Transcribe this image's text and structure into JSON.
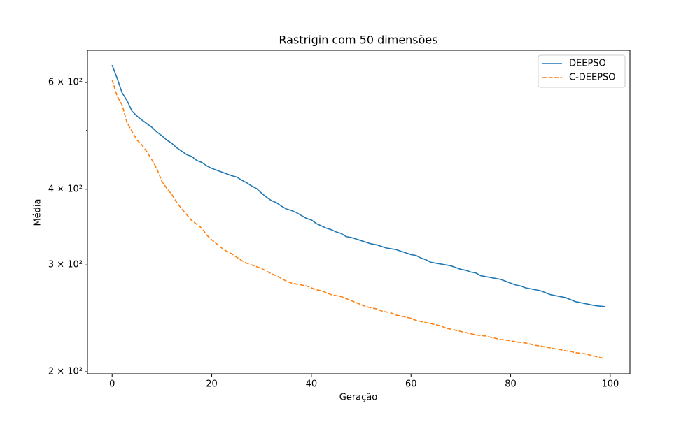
{
  "chart_data": {
    "type": "line",
    "title": "Rastrigin com 50 dimensões",
    "x_label": "Geração",
    "y_label": "Média",
    "y_scale": "log",
    "legend_position": "upper right",
    "xlim": [
      -4.95,
      103.95
    ],
    "xticks": [
      0,
      20,
      40,
      60,
      80,
      100
    ],
    "ylim": [
      198.4,
      678
    ],
    "yticks": [
      {
        "value": 200,
        "label": "2 × 10²"
      },
      {
        "value": 300,
        "label": "3 × 10²"
      },
      {
        "value": 400,
        "label": "4 × 10²"
      },
      {
        "value": 600,
        "label": "6 × 10²"
      }
    ],
    "yminorticks": [
      500
    ],
    "x": [
      0,
      1,
      2,
      3,
      4,
      5,
      6,
      7,
      8,
      9,
      10,
      11,
      12,
      13,
      14,
      15,
      16,
      17,
      18,
      19,
      20,
      21,
      22,
      23,
      24,
      25,
      26,
      27,
      28,
      29,
      30,
      31,
      32,
      33,
      34,
      35,
      36,
      37,
      38,
      39,
      40,
      41,
      42,
      43,
      44,
      45,
      46,
      47,
      48,
      49,
      50,
      51,
      52,
      53,
      54,
      55,
      56,
      57,
      58,
      59,
      60,
      61,
      62,
      63,
      64,
      65,
      66,
      67,
      68,
      69,
      70,
      71,
      72,
      73,
      74,
      75,
      76,
      77,
      78,
      79,
      80,
      81,
      82,
      83,
      84,
      85,
      86,
      87,
      88,
      89,
      90,
      91,
      92,
      93,
      94,
      95,
      96,
      97,
      98,
      99
    ],
    "series": [
      {
        "name": "DEEPSO",
        "color": "#1f77b4",
        "linestyle": "solid",
        "values": [
          641,
          610,
          577,
          560,
          538,
          528,
          520,
          513,
          506,
          497,
          490,
          482,
          476,
          468,
          462,
          456,
          453,
          446,
          443,
          437,
          433,
          430,
          427,
          424,
          421,
          419,
          414,
          410,
          405,
          401,
          394,
          388,
          383,
          380,
          375,
          371,
          369,
          366,
          362,
          358,
          356,
          351,
          348,
          345,
          343,
          340,
          338,
          334,
          333,
          331,
          329,
          327,
          325,
          324,
          322,
          320,
          319,
          318,
          316,
          314,
          312,
          311,
          308,
          306,
          303,
          302,
          301,
          300,
          299,
          297,
          295,
          294,
          292,
          291,
          288,
          287,
          286,
          285,
          284,
          282,
          280,
          278,
          277,
          275,
          274,
          273,
          272,
          270,
          268,
          267,
          266,
          265,
          263,
          261,
          260,
          259,
          258,
          257,
          256.5,
          256
        ]
      },
      {
        "name": "C-DEEPSO",
        "color": "#ff7f0e",
        "linestyle": "dashed",
        "values": [
          606,
          570,
          551,
          515,
          498,
          482,
          473,
          461,
          447,
          432,
          412,
          401,
          392,
          380,
          371,
          363,
          355,
          350,
          345,
          336,
          330,
          325,
          320,
          316,
          313,
          309,
          305,
          302,
          300,
          298,
          296,
          293,
          290,
          288,
          285,
          282,
          280,
          279,
          278,
          277,
          275,
          273,
          272,
          270,
          268,
          267,
          266,
          264,
          262,
          260,
          258,
          256,
          255,
          254,
          252,
          251,
          250,
          248,
          247,
          246,
          245,
          243,
          242,
          241,
          240,
          239,
          238,
          236,
          235,
          234,
          233,
          232,
          231,
          230,
          229.5,
          229,
          228,
          227,
          226,
          225.5,
          225,
          224,
          223.5,
          223,
          222,
          221,
          220.5,
          219.5,
          219,
          218,
          217.5,
          216.5,
          216,
          215,
          214.5,
          214,
          213,
          212,
          211,
          210
        ]
      }
    ]
  }
}
